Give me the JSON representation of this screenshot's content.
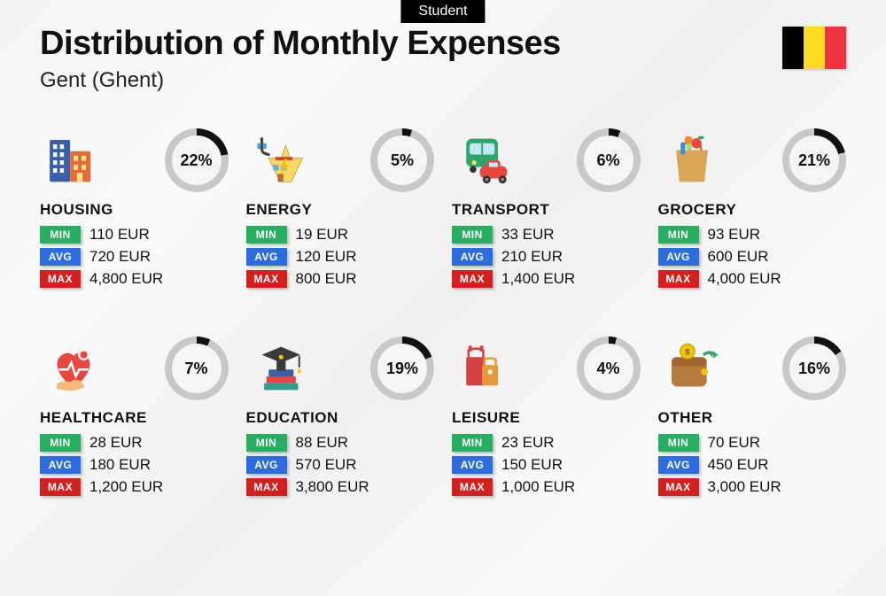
{
  "tag": "Student",
  "title": "Distribution of Monthly Expenses",
  "subtitle": "Gent (Ghent)",
  "flag_colors": [
    "#000000",
    "#fdda24",
    "#ef3340"
  ],
  "ring_colors": {
    "fill": "#111111",
    "track": "#c8c8c8"
  },
  "badge_colors": {
    "min": "#27ae60",
    "avg": "#2d6cdf",
    "max": "#d21f1f"
  },
  "badge_labels": {
    "min": "MIN",
    "avg": "AVG",
    "max": "MAX"
  },
  "categories": [
    {
      "name": "HOUSING",
      "pct": 22,
      "pct_label": "22%",
      "min": "110 EUR",
      "avg": "720 EUR",
      "max": "4,800 EUR",
      "icon": "housing"
    },
    {
      "name": "ENERGY",
      "pct": 5,
      "pct_label": "5%",
      "min": "19 EUR",
      "avg": "120 EUR",
      "max": "800 EUR",
      "icon": "energy"
    },
    {
      "name": "TRANSPORT",
      "pct": 6,
      "pct_label": "6%",
      "min": "33 EUR",
      "avg": "210 EUR",
      "max": "1,400 EUR",
      "icon": "transport"
    },
    {
      "name": "GROCERY",
      "pct": 21,
      "pct_label": "21%",
      "min": "93 EUR",
      "avg": "600 EUR",
      "max": "4,000 EUR",
      "icon": "grocery"
    },
    {
      "name": "HEALTHCARE",
      "pct": 7,
      "pct_label": "7%",
      "min": "28 EUR",
      "avg": "180 EUR",
      "max": "1,200 EUR",
      "icon": "healthcare"
    },
    {
      "name": "EDUCATION",
      "pct": 19,
      "pct_label": "19%",
      "min": "88 EUR",
      "avg": "570 EUR",
      "max": "3,800 EUR",
      "icon": "education"
    },
    {
      "name": "LEISURE",
      "pct": 4,
      "pct_label": "4%",
      "min": "23 EUR",
      "avg": "150 EUR",
      "max": "1,000 EUR",
      "icon": "leisure"
    },
    {
      "name": "OTHER",
      "pct": 16,
      "pct_label": "16%",
      "min": "70 EUR",
      "avg": "450 EUR",
      "max": "3,000 EUR",
      "icon": "other"
    }
  ]
}
